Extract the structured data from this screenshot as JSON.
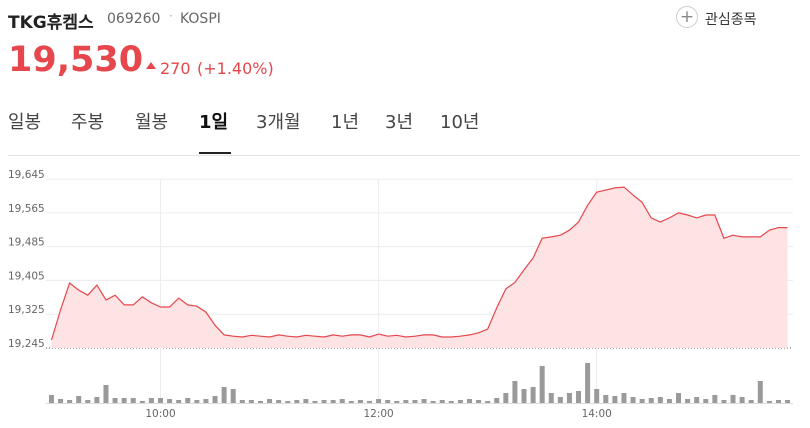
{
  "header": {
    "name": "TKG휴켐스",
    "code": "069260",
    "market": "KOSPI",
    "watchlist": "관심종목",
    "price": "19,530",
    "change": "270",
    "change_pct": "(+1.40%)"
  },
  "tabs": [
    "일봉",
    "주봉",
    "월봉",
    "1일",
    "3개월",
    "1년",
    "3년",
    "10년"
  ],
  "chart_data": {
    "type": "line",
    "color": "#e5474c",
    "fill": "#fde3e3",
    "volume_color": "#9a9a9a",
    "grid": true,
    "x": [
      540,
      545,
      550,
      555,
      560,
      565,
      570,
      575,
      580,
      585,
      590,
      595,
      600,
      605,
      610,
      615,
      620,
      625,
      630,
      635,
      640,
      645,
      650,
      655,
      660,
      665,
      670,
      675,
      680,
      685,
      690,
      695,
      700,
      705,
      710,
      715,
      720,
      725,
      730,
      735,
      740,
      745,
      750,
      755,
      760,
      765,
      770,
      775,
      780,
      785,
      790,
      795,
      800,
      805,
      810,
      815,
      820,
      825,
      830,
      835,
      840,
      845,
      850,
      855,
      860,
      865,
      870,
      875,
      880,
      885,
      890,
      895,
      900,
      905,
      910,
      915,
      920,
      925,
      930,
      935,
      940,
      945
    ],
    "values": [
      19264,
      19335,
      19399,
      19382,
      19370,
      19394,
      19359,
      19370,
      19347,
      19347,
      19366,
      19352,
      19342,
      19342,
      19363,
      19347,
      19344,
      19330,
      19299,
      19276,
      19273,
      19271,
      19275,
      19273,
      19271,
      19276,
      19273,
      19271,
      19275,
      19273,
      19271,
      19276,
      19273,
      19276,
      19276,
      19271,
      19278,
      19273,
      19275,
      19271,
      19273,
      19276,
      19276,
      19271,
      19271,
      19273,
      19276,
      19281,
      19290,
      19340,
      19385,
      19400,
      19430,
      19458,
      19505,
      19508,
      19512,
      19524,
      19543,
      19583,
      19614,
      19619,
      19624,
      19626,
      19607,
      19590,
      19553,
      19543,
      19553,
      19565,
      19560,
      19553,
      19560,
      19560,
      19505,
      19512,
      19508,
      19508,
      19508,
      19524,
      19530,
      19530
    ],
    "volume": [
      8,
      4,
      3,
      7,
      3,
      6,
      18,
      5,
      5,
      5,
      2,
      5,
      5,
      4,
      3,
      5,
      3,
      4,
      7,
      16,
      14,
      3,
      3,
      2,
      4,
      3,
      2,
      3,
      4,
      2,
      3,
      3,
      4,
      2,
      3,
      2,
      4,
      3,
      2,
      3,
      3,
      4,
      2,
      3,
      2,
      3,
      4,
      3,
      2,
      5,
      10,
      22,
      14,
      16,
      37,
      10,
      6,
      10,
      12,
      40,
      14,
      8,
      7,
      10,
      6,
      4,
      5,
      6,
      4,
      10,
      4,
      6,
      4,
      8,
      3,
      8,
      6,
      3,
      22,
      2,
      3,
      3
    ],
    "xlim": [
      537,
      948
    ],
    "xticks": [
      {
        "value": 600,
        "label": "10:00"
      },
      {
        "value": 720,
        "label": "12:00"
      },
      {
        "value": 840,
        "label": "14:00"
      }
    ],
    "ylim": [
      19245,
      19702
    ],
    "yticks": [
      {
        "value": 19245,
        "label": "19,245"
      },
      {
        "value": 19325,
        "label": "19,325"
      },
      {
        "value": 19405,
        "label": "19,405"
      },
      {
        "value": 19485,
        "label": "19,485"
      },
      {
        "value": 19565,
        "label": "19,565"
      },
      {
        "value": 19645,
        "label": "19,645"
      }
    ]
  }
}
